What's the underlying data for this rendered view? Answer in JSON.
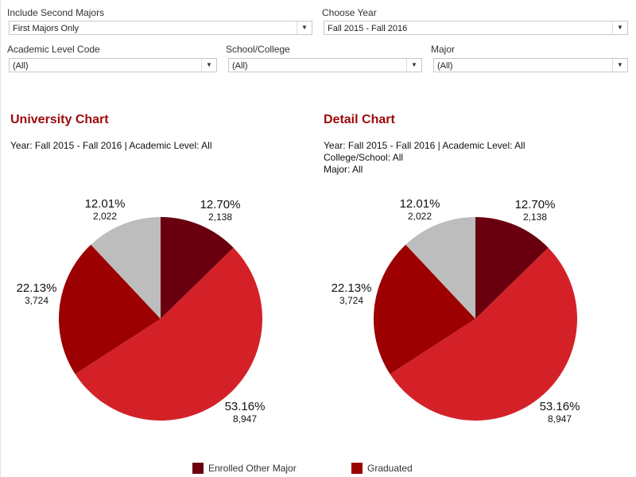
{
  "filters": {
    "second_majors": {
      "label": "Include Second Majors",
      "value": "First Majors Only"
    },
    "year": {
      "label": "Choose Year",
      "value": "Fall 2015 - Fall 2016"
    },
    "academic_level": {
      "label": "Academic Level Code",
      "value": "(All)"
    },
    "school": {
      "label": "School/College",
      "value": "(All)"
    },
    "major": {
      "label": "Major",
      "value": "(All)"
    }
  },
  "chart_data": [
    {
      "type": "pie",
      "title": "University Chart",
      "subtitle": [
        "Year: Fall 2015 - Fall 2016 | Academic Level: All"
      ],
      "slices": [
        {
          "pct": "12.70%",
          "count": "2,138",
          "value": 2138,
          "color": "#6a000f"
        },
        {
          "pct": "53.16%",
          "count": "8,947",
          "value": 8947,
          "color": "#d42128"
        },
        {
          "pct": "22.13%",
          "count": "3,724",
          "value": 3724,
          "color": "#9c0000"
        },
        {
          "pct": "12.01%",
          "count": "2,022",
          "value": 2022,
          "color": "#bdbdbd"
        }
      ]
    },
    {
      "type": "pie",
      "title": "Detail Chart",
      "subtitle": [
        "Year: Fall 2015 - Fall 2016 | Academic Level: All",
        "College/School: All",
        "Major: All"
      ],
      "slices": [
        {
          "pct": "12.70%",
          "count": "2,138",
          "value": 2138,
          "color": "#6a000f"
        },
        {
          "pct": "53.16%",
          "count": "8,947",
          "value": 8947,
          "color": "#d42128"
        },
        {
          "pct": "22.13%",
          "count": "3,724",
          "value": 3724,
          "color": "#9c0000"
        },
        {
          "pct": "12.01%",
          "count": "2,022",
          "value": 2022,
          "color": "#bdbdbd"
        }
      ]
    }
  ],
  "legend": [
    {
      "label": "Enrolled Other Major",
      "color": "#6a000f"
    },
    {
      "label": "Graduated",
      "color": "#9c0000"
    }
  ]
}
